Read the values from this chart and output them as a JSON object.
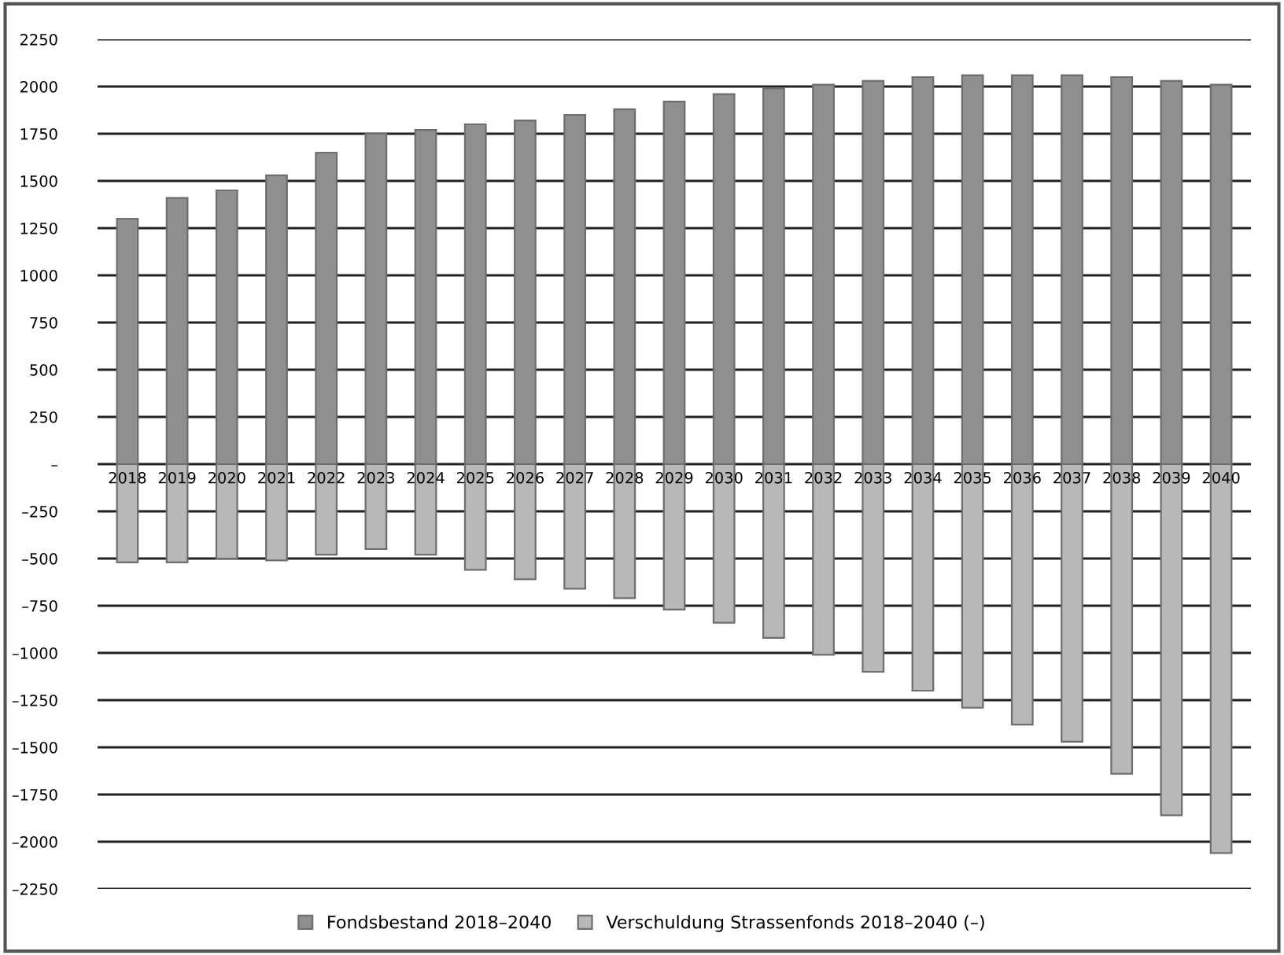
{
  "chart_data": {
    "type": "bar",
    "stacked": true,
    "categories": [
      "2018",
      "2019",
      "2020",
      "2021",
      "2022",
      "2023",
      "2024",
      "2025",
      "2026",
      "2027",
      "2028",
      "2029",
      "2030",
      "2031",
      "2032",
      "2033",
      "2034",
      "2035",
      "2036",
      "2037",
      "2038",
      "2039",
      "2040"
    ],
    "series": [
      {
        "name": "Fondsbestand 2018–2040",
        "color": "#8f8f8f",
        "values": [
          1300,
          1410,
          1450,
          1530,
          1650,
          1750,
          1770,
          1800,
          1820,
          1850,
          1880,
          1920,
          1960,
          1990,
          2010,
          2030,
          2050,
          2060,
          2060,
          2060,
          2050,
          2030,
          2010
        ]
      },
      {
        "name": "Verschuldung Strassenfonds 2018–2040 (–)",
        "color": "#b8b8b8",
        "values": [
          -520,
          -520,
          -500,
          -510,
          -480,
          -450,
          -480,
          -560,
          -610,
          -660,
          -710,
          -770,
          -840,
          -920,
          -1010,
          -1100,
          -1200,
          -1290,
          -1380,
          -1470,
          -1640,
          -1860,
          -2060
        ]
      }
    ],
    "ylim": [
      -2250,
      2250
    ],
    "yticks": [
      {
        "value": -2250,
        "label": "–2250"
      },
      {
        "value": -2000,
        "label": "–2000"
      },
      {
        "value": -1750,
        "label": "–1750"
      },
      {
        "value": -1500,
        "label": "–1500"
      },
      {
        "value": -1250,
        "label": "–1250"
      },
      {
        "value": -1000,
        "label": "–1000"
      },
      {
        "value": -750,
        "label": "–750"
      },
      {
        "value": -500,
        "label": "–500"
      },
      {
        "value": -250,
        "label": "–250"
      },
      {
        "value": 0,
        "label": "–"
      },
      250,
      500,
      750,
      1000,
      1250,
      1500,
      1750,
      2000,
      2250
    ],
    "grid": "y",
    "legend": "bottom"
  }
}
